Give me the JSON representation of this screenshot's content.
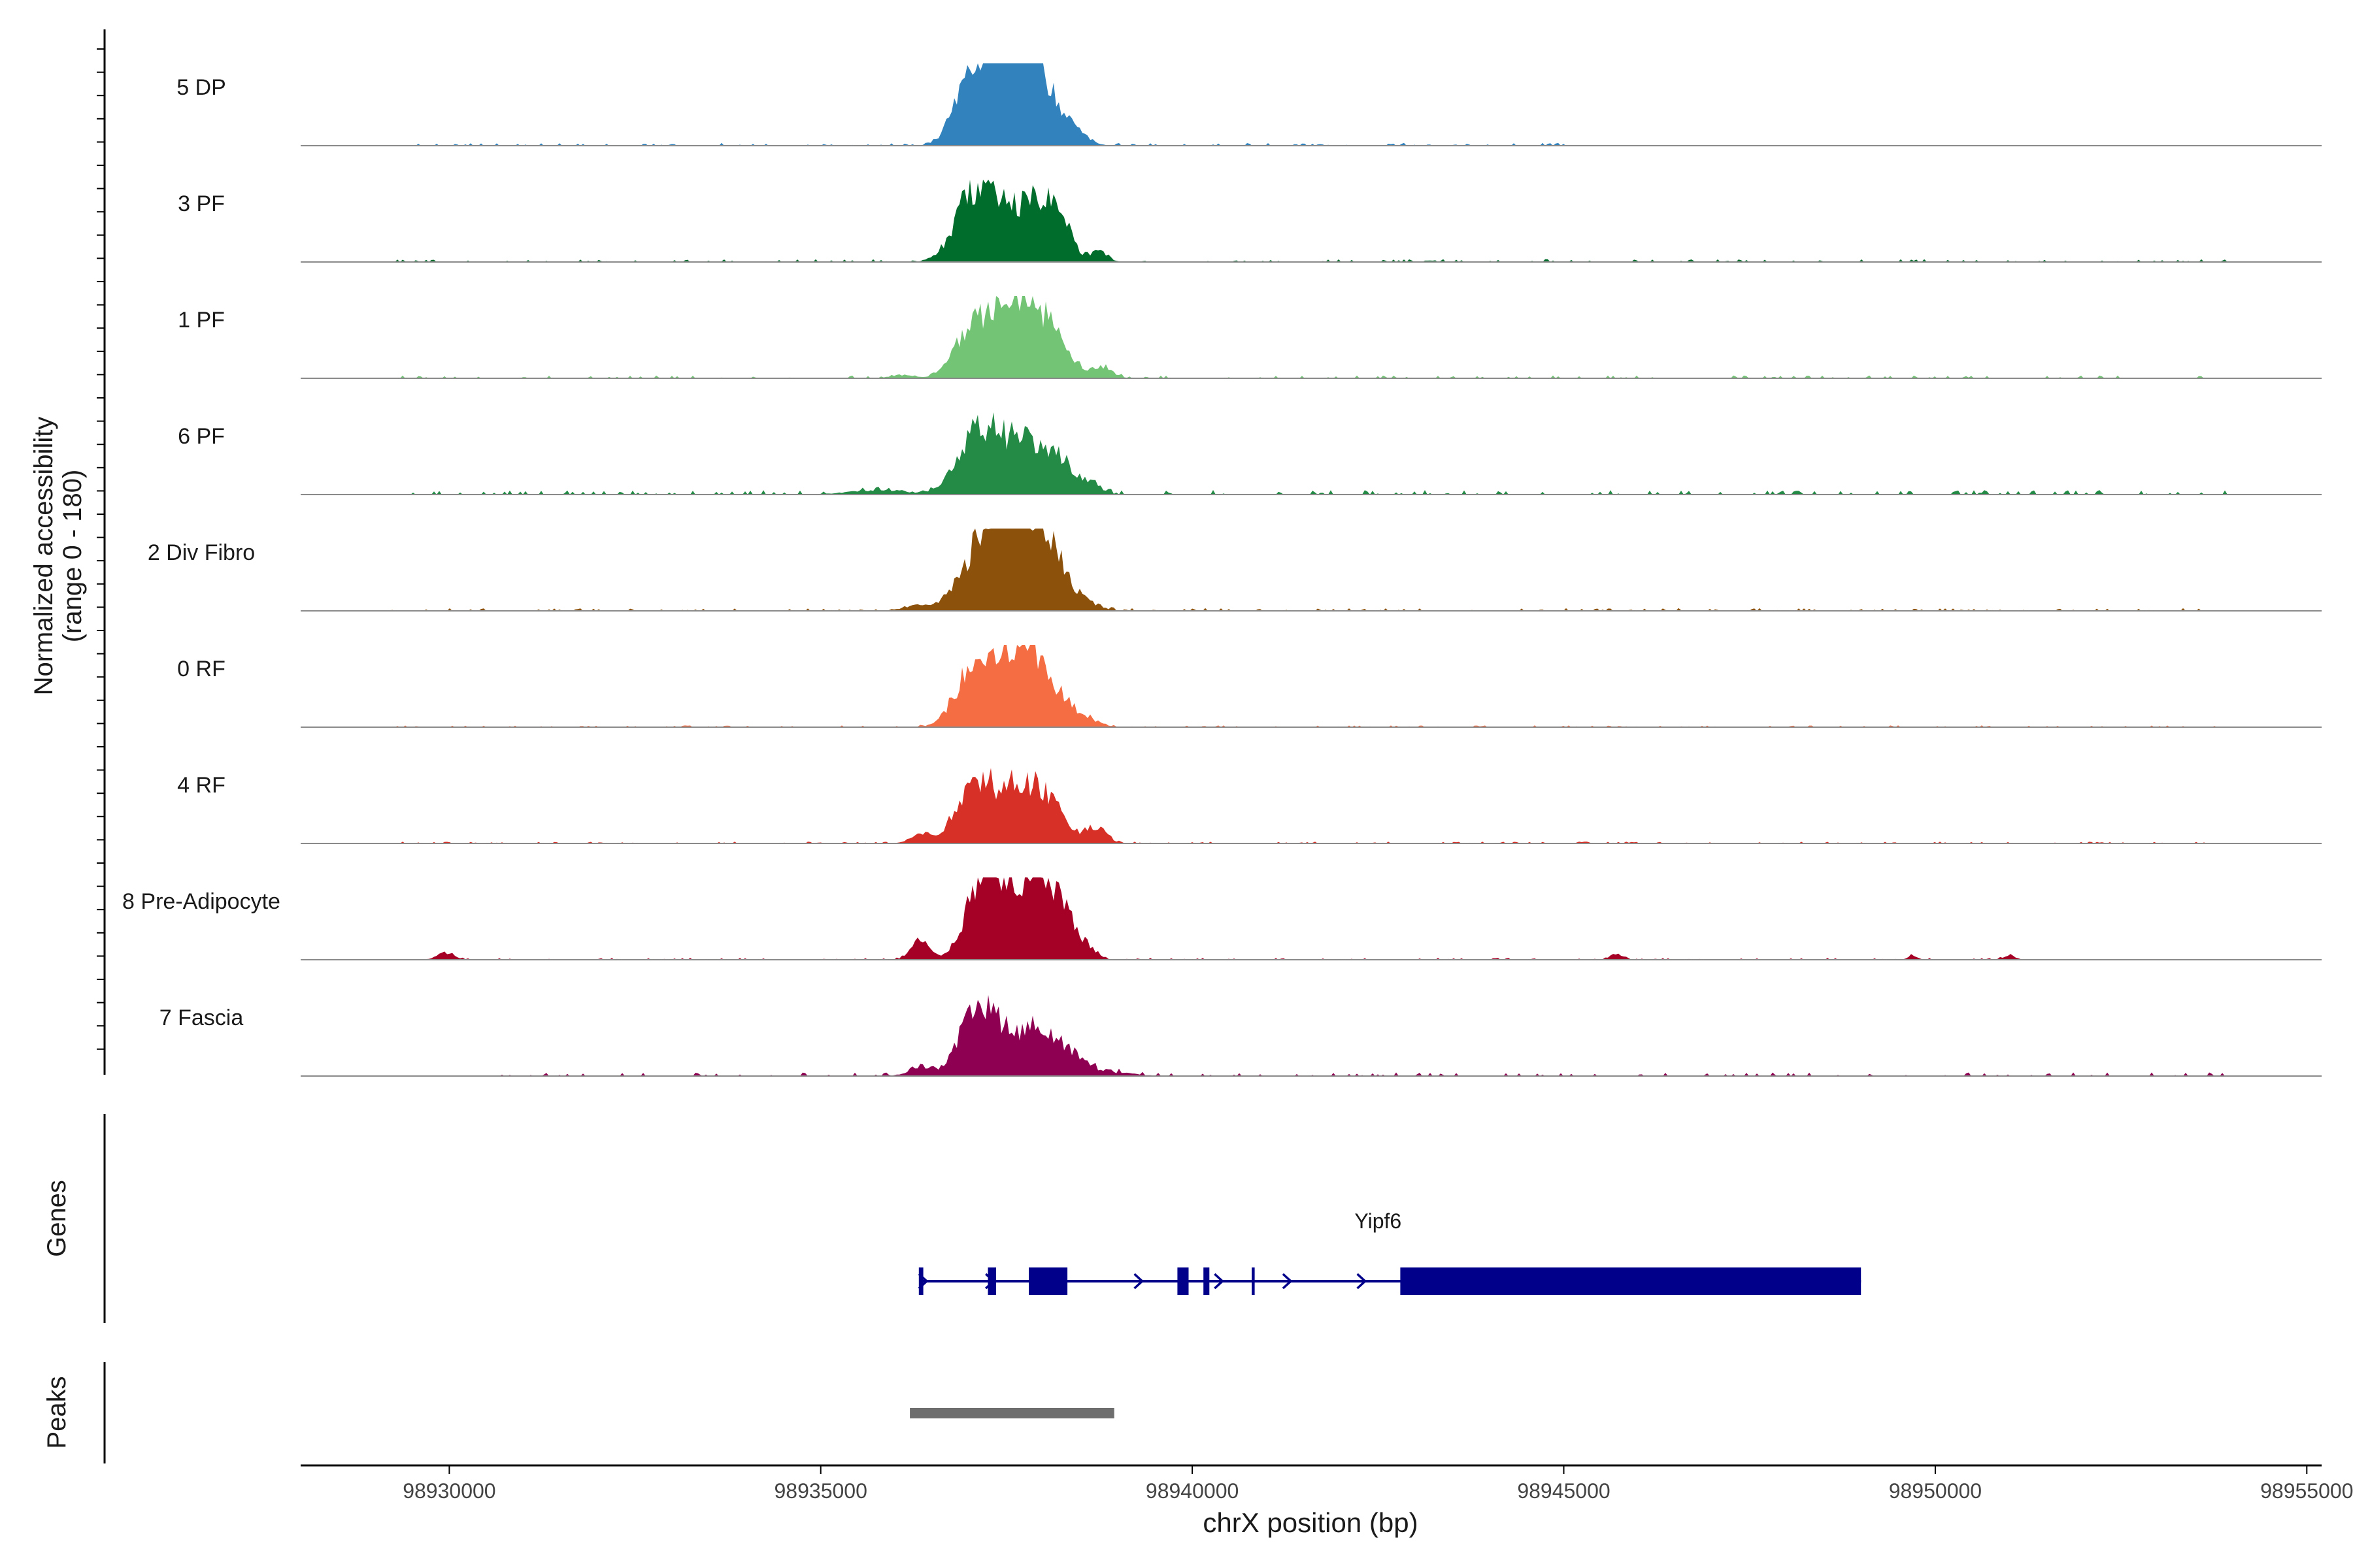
{
  "chart_data": {
    "type": "area",
    "title": "",
    "xlabel": "chrX position (bp)",
    "ylabel_line1": "Normalized accessibility",
    "ylabel_line2": "(range 0 - 180)",
    "xlim": [
      98928000,
      98955200
    ],
    "ylim": [
      0,
      180
    ],
    "x_ticks": [
      98930000,
      98935000,
      98940000,
      98945000,
      98950000,
      98955000
    ],
    "x_tick_labels": [
      "98930000",
      "98935000",
      "98940000",
      "98945000",
      "98950000",
      "98955000"
    ],
    "tracks": [
      {
        "name": "5 DP",
        "color": "#3182bd",
        "bumps": [
          [
            98937250,
            300,
            132
          ],
          [
            98937350,
            200,
            118
          ],
          [
            98937950,
            280,
            126
          ],
          [
            98937750,
            200,
            90
          ],
          [
            98936900,
            150,
            60
          ],
          [
            98938450,
            160,
            12
          ]
        ],
        "background": {
          "start": 98929400,
          "end": 98945100,
          "level": 3
        }
      },
      {
        "name": "3 PF",
        "color": "#006d2c",
        "bumps": [
          [
            98937300,
            320,
            128
          ],
          [
            98936950,
            200,
            70
          ],
          [
            98937950,
            260,
            115
          ],
          [
            98938200,
            150,
            55
          ],
          [
            98938750,
            110,
            25
          ]
        ],
        "background": {
          "start": 98929300,
          "end": 98953900,
          "level": 3
        }
      },
      {
        "name": "1 PF",
        "color": "#74c476",
        "bumps": [
          [
            98937350,
            300,
            126
          ],
          [
            98936950,
            200,
            55
          ],
          [
            98938050,
            270,
            110
          ],
          [
            98937700,
            200,
            85
          ],
          [
            98938800,
            130,
            22
          ],
          [
            98936100,
            160,
            8
          ]
        ],
        "background": {
          "start": 98929300,
          "end": 98953900,
          "level": 3
        }
      },
      {
        "name": "6 PF",
        "color": "#238b45",
        "bumps": [
          [
            98937300,
            300,
            125
          ],
          [
            98936950,
            200,
            60
          ],
          [
            98937900,
            280,
            96
          ],
          [
            98938300,
            160,
            38
          ],
          [
            98938650,
            130,
            22
          ],
          [
            98935800,
            400,
            10
          ]
        ],
        "background": {
          "start": 98929300,
          "end": 98953900,
          "level": 5
        }
      },
      {
        "name": "2 Div Fibro",
        "color": "#8c510a",
        "bumps": [
          [
            98937200,
            300,
            150
          ],
          [
            98937450,
            200,
            120
          ],
          [
            98938000,
            260,
            140
          ],
          [
            98937800,
            200,
            90
          ],
          [
            98938500,
            200,
            20
          ],
          [
            98936300,
            200,
            10
          ]
        ],
        "background": {
          "start": 98929200,
          "end": 98953900,
          "level": 3
        }
      },
      {
        "name": "0 RF",
        "color": "#f46d43",
        "bumps": [
          [
            98937300,
            300,
            122
          ],
          [
            98936950,
            200,
            60
          ],
          [
            98937950,
            270,
            112
          ],
          [
            98937700,
            200,
            80
          ],
          [
            98938500,
            200,
            22
          ]
        ],
        "background": {
          "start": 98929300,
          "end": 98953900,
          "level": 2
        }
      },
      {
        "name": "4 RF",
        "color": "#d73027",
        "bumps": [
          [
            98937250,
            280,
            114
          ],
          [
            98936950,
            200,
            55
          ],
          [
            98938000,
            260,
            98
          ],
          [
            98937700,
            200,
            60
          ],
          [
            98938700,
            140,
            35
          ],
          [
            98936350,
            140,
            20
          ]
        ],
        "background": {
          "start": 98929300,
          "end": 98953900,
          "level": 2
        }
      },
      {
        "name": "8 Pre-Adipocyte",
        "color": "#a50026",
        "bumps": [
          [
            98937400,
            260,
            150
          ],
          [
            98937100,
            200,
            95
          ],
          [
            98937900,
            280,
            140
          ],
          [
            98938250,
            160,
            80
          ],
          [
            98936350,
            120,
            50
          ],
          [
            98938600,
            120,
            25
          ],
          [
            98929950,
            120,
            15
          ],
          [
            98945700,
            80,
            14
          ],
          [
            98951000,
            70,
            12
          ],
          [
            98949700,
            60,
            10
          ]
        ],
        "background": {
          "start": 98929800,
          "end": 98951100,
          "level": 2
        }
      },
      {
        "name": "7 Fascia",
        "color": "#8e0152",
        "bumps": [
          [
            98937300,
            280,
            122
          ],
          [
            98937000,
            200,
            60
          ],
          [
            98937950,
            260,
            100
          ],
          [
            98938400,
            200,
            30
          ],
          [
            98936350,
            160,
            22
          ],
          [
            98938900,
            300,
            8
          ]
        ],
        "background": {
          "start": 98930500,
          "end": 98953900,
          "level": 4
        }
      }
    ],
    "genes": {
      "label": "Genes",
      "color": "#00008b",
      "gene_name": "Yipf6",
      "start": 98936350,
      "end": 98949000,
      "strand": "+",
      "exons": [
        [
          98936320,
          98936380,
          "thin"
        ],
        [
          98937250,
          98937360,
          "thin"
        ],
        [
          98937800,
          98938320,
          "thick"
        ],
        [
          98939800,
          98939950,
          "thick"
        ],
        [
          98940150,
          98940230,
          "thick"
        ],
        [
          98940800,
          98940840,
          "thin"
        ],
        [
          98942800,
          98949000,
          "thick"
        ]
      ],
      "arrows": [
        98936400,
        98937300,
        98939300,
        98940380,
        98941300,
        98942300
      ]
    },
    "peaks": {
      "label": "Peaks",
      "color": "#6e6e6e",
      "regions": [
        [
          98936200,
          98938950
        ]
      ]
    }
  }
}
